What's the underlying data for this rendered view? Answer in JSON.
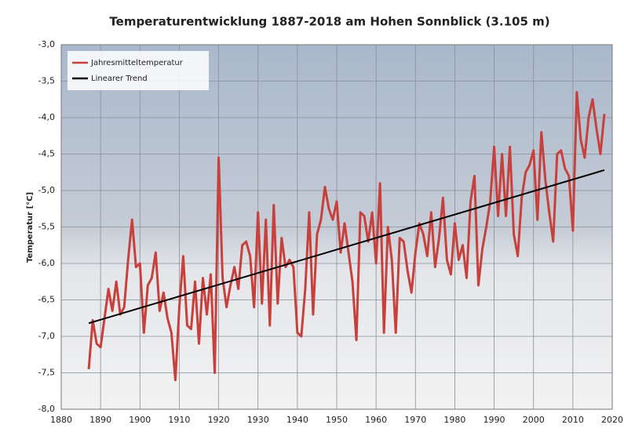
{
  "chart_data": {
    "type": "line",
    "title": "Temperaturentwicklung 1887-2018 am Hohen Sonnblick (3.105 m)",
    "y_label": "Temperatur [°C]",
    "x": [
      1887,
      1888,
      1889,
      1890,
      1891,
      1892,
      1893,
      1894,
      1895,
      1896,
      1897,
      1898,
      1899,
      1900,
      1901,
      1902,
      1903,
      1904,
      1905,
      1906,
      1907,
      1908,
      1909,
      1910,
      1911,
      1912,
      1913,
      1914,
      1915,
      1916,
      1917,
      1918,
      1919,
      1920,
      1921,
      1922,
      1923,
      1924,
      1925,
      1926,
      1927,
      1928,
      1929,
      1930,
      1931,
      1932,
      1933,
      1934,
      1935,
      1936,
      1937,
      1938,
      1939,
      1940,
      1941,
      1942,
      1943,
      1944,
      1945,
      1946,
      1947,
      1948,
      1949,
      1950,
      1951,
      1952,
      1953,
      1954,
      1955,
      1956,
      1957,
      1958,
      1959,
      1960,
      1961,
      1962,
      1963,
      1964,
      1965,
      1966,
      1967,
      1968,
      1969,
      1970,
      1971,
      1972,
      1973,
      1974,
      1975,
      1976,
      1977,
      1978,
      1979,
      1980,
      1981,
      1982,
      1983,
      1984,
      1985,
      1986,
      1987,
      1988,
      1989,
      1990,
      1991,
      1992,
      1993,
      1994,
      1995,
      1996,
      1997,
      1998,
      1999,
      2000,
      2001,
      2002,
      2003,
      2004,
      2005,
      2006,
      2007,
      2008,
      2009,
      2010,
      2011,
      2012,
      2013,
      2014,
      2015,
      2016,
      2017,
      2018
    ],
    "series": [
      {
        "name": "Jahresmitteltemperatur",
        "color": "#c8403c",
        "values": [
          -7.45,
          -6.78,
          -7.1,
          -7.15,
          -6.75,
          -6.35,
          -6.65,
          -6.25,
          -6.7,
          -6.6,
          -5.95,
          -5.4,
          -6.05,
          -6.0,
          -6.95,
          -6.3,
          -6.2,
          -5.85,
          -6.65,
          -6.4,
          -6.75,
          -6.95,
          -7.6,
          -6.6,
          -5.9,
          -6.85,
          -6.9,
          -6.25,
          -7.1,
          -6.2,
          -6.7,
          -6.15,
          -7.5,
          -4.55,
          -6.2,
          -6.6,
          -6.3,
          -6.05,
          -6.35,
          -5.75,
          -5.7,
          -5.9,
          -6.6,
          -5.3,
          -6.55,
          -5.4,
          -6.85,
          -5.2,
          -6.55,
          -5.65,
          -6.05,
          -5.95,
          -6.05,
          -6.95,
          -7.0,
          -6.35,
          -5.3,
          -6.7,
          -5.6,
          -5.4,
          -4.95,
          -5.25,
          -5.4,
          -5.15,
          -5.85,
          -5.45,
          -5.85,
          -6.25,
          -7.05,
          -5.3,
          -5.35,
          -5.7,
          -5.3,
          -6.0,
          -4.9,
          -6.95,
          -5.5,
          -5.95,
          -6.95,
          -5.65,
          -5.7,
          -6.1,
          -6.4,
          -5.85,
          -5.45,
          -5.6,
          -5.9,
          -5.3,
          -6.05,
          -5.65,
          -5.1,
          -5.95,
          -6.15,
          -5.45,
          -5.95,
          -5.75,
          -6.2,
          -5.15,
          -4.8,
          -6.3,
          -5.8,
          -5.5,
          -5.15,
          -4.4,
          -5.35,
          -4.5,
          -5.35,
          -4.4,
          -5.6,
          -5.9,
          -5.1,
          -4.75,
          -4.65,
          -4.45,
          -5.4,
          -4.2,
          -4.85,
          -5.3,
          -5.7,
          -4.5,
          -4.45,
          -4.7,
          -4.8,
          -5.55,
          -3.65,
          -4.3,
          -4.55,
          -4.0,
          -3.75,
          -4.15,
          -4.5,
          -3.95
        ]
      },
      {
        "name": "Linearer Trend",
        "color": "#000000",
        "x": [
          1887,
          2018
        ],
        "values": [
          -6.82,
          -4.72
        ]
      }
    ],
    "xlim": [
      1880,
      2020
    ],
    "xticks": [
      1880,
      1890,
      1900,
      1910,
      1920,
      1930,
      1940,
      1950,
      1960,
      1970,
      1980,
      1990,
      2000,
      2010,
      2020
    ],
    "ylim": [
      -8,
      -3
    ],
    "yticks": [
      {
        "value": -8,
        "label": "-8,0"
      },
      {
        "value": -7.5,
        "label": "-7,5"
      },
      {
        "value": -7,
        "label": "-7,0"
      },
      {
        "value": -6.5,
        "label": "-6,5"
      },
      {
        "value": -6,
        "label": "-6,0"
      },
      {
        "value": -5.5,
        "label": "-5,5"
      },
      {
        "value": -5,
        "label": "-5,0"
      },
      {
        "value": -4.5,
        "label": "-4,5"
      },
      {
        "value": -4,
        "label": "-4,0"
      },
      {
        "value": -3.5,
        "label": "-3,5"
      },
      {
        "value": -3,
        "label": "-3,0"
      }
    ],
    "grid": true,
    "legend": "top-left"
  }
}
